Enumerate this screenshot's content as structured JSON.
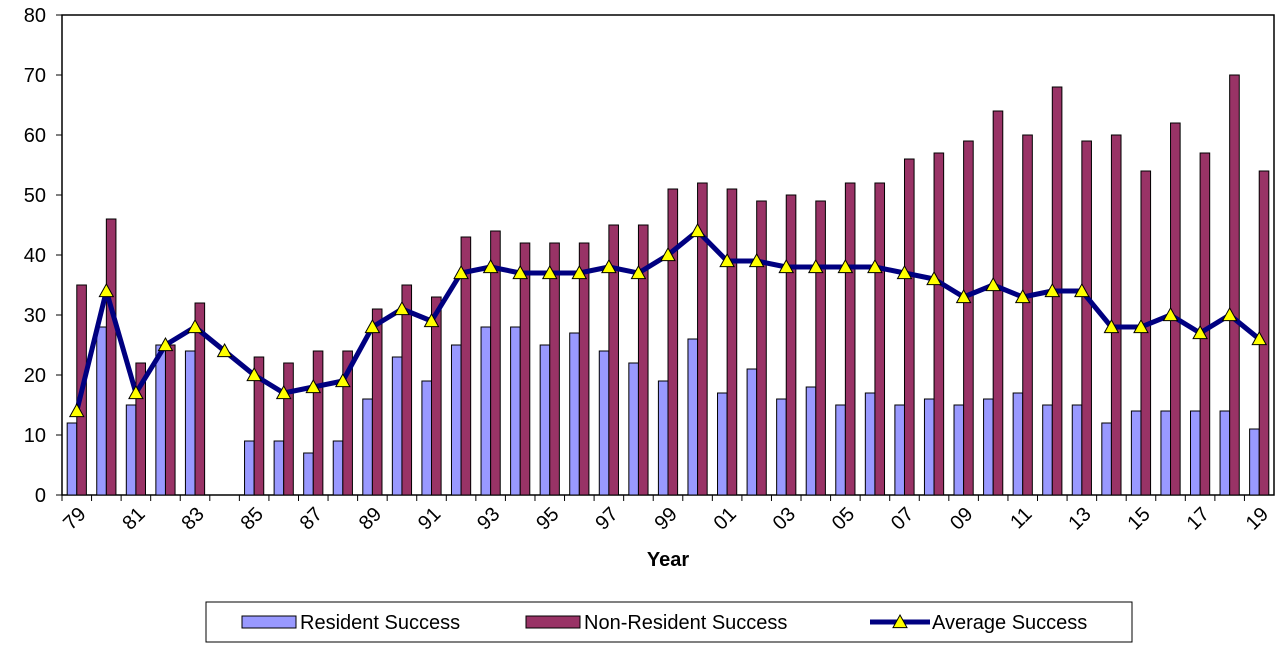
{
  "chart_data": {
    "type": "bar-line",
    "x_label": "Year",
    "categories": [
      "79",
      null,
      "81",
      null,
      "83",
      null,
      "85",
      null,
      "87",
      null,
      "89",
      null,
      "91",
      null,
      "93",
      null,
      "95",
      null,
      "97",
      null,
      "99",
      null,
      "01",
      null,
      "03",
      null,
      "05",
      null,
      "07",
      null,
      "09",
      null,
      "11",
      null,
      "13",
      null,
      "15",
      null,
      "17",
      null,
      "19"
    ],
    "ylim": [
      0,
      80
    ],
    "yticks": [
      0,
      10,
      20,
      30,
      40,
      50,
      60,
      70,
      80
    ],
    "series": [
      {
        "name": "Resident Success",
        "type": "bar",
        "color": "#9999ff",
        "values": [
          12,
          28,
          15,
          25,
          24,
          0,
          9,
          9,
          7,
          9,
          16,
          23,
          19,
          25,
          28,
          28,
          25,
          27,
          24,
          22,
          19,
          26,
          17,
          21,
          16,
          18,
          15,
          17,
          15,
          16,
          15,
          16,
          17,
          15,
          15,
          12,
          14,
          14,
          14,
          14,
          11
        ]
      },
      {
        "name": "Non-Resident Success",
        "type": "bar",
        "color": "#993366",
        "values": [
          35,
          46,
          22,
          25,
          32,
          0,
          23,
          22,
          24,
          24,
          31,
          35,
          33,
          43,
          44,
          42,
          42,
          42,
          45,
          45,
          51,
          52,
          51,
          49,
          50,
          49,
          52,
          52,
          56,
          57,
          59,
          64,
          60,
          68,
          59,
          60,
          54,
          62,
          57,
          70,
          54
        ]
      },
      {
        "name": "Average Success",
        "type": "line",
        "color": "#000080",
        "marker_color": "#ffff00",
        "values": [
          14,
          34,
          17,
          25,
          28,
          24,
          20,
          17,
          18,
          19,
          28,
          31,
          29,
          37,
          38,
          37,
          37,
          37,
          38,
          37,
          40,
          44,
          39,
          39,
          38,
          38,
          38,
          38,
          37,
          36,
          33,
          35,
          33,
          34,
          34,
          28,
          28,
          30,
          27,
          30,
          26
        ]
      }
    ]
  }
}
